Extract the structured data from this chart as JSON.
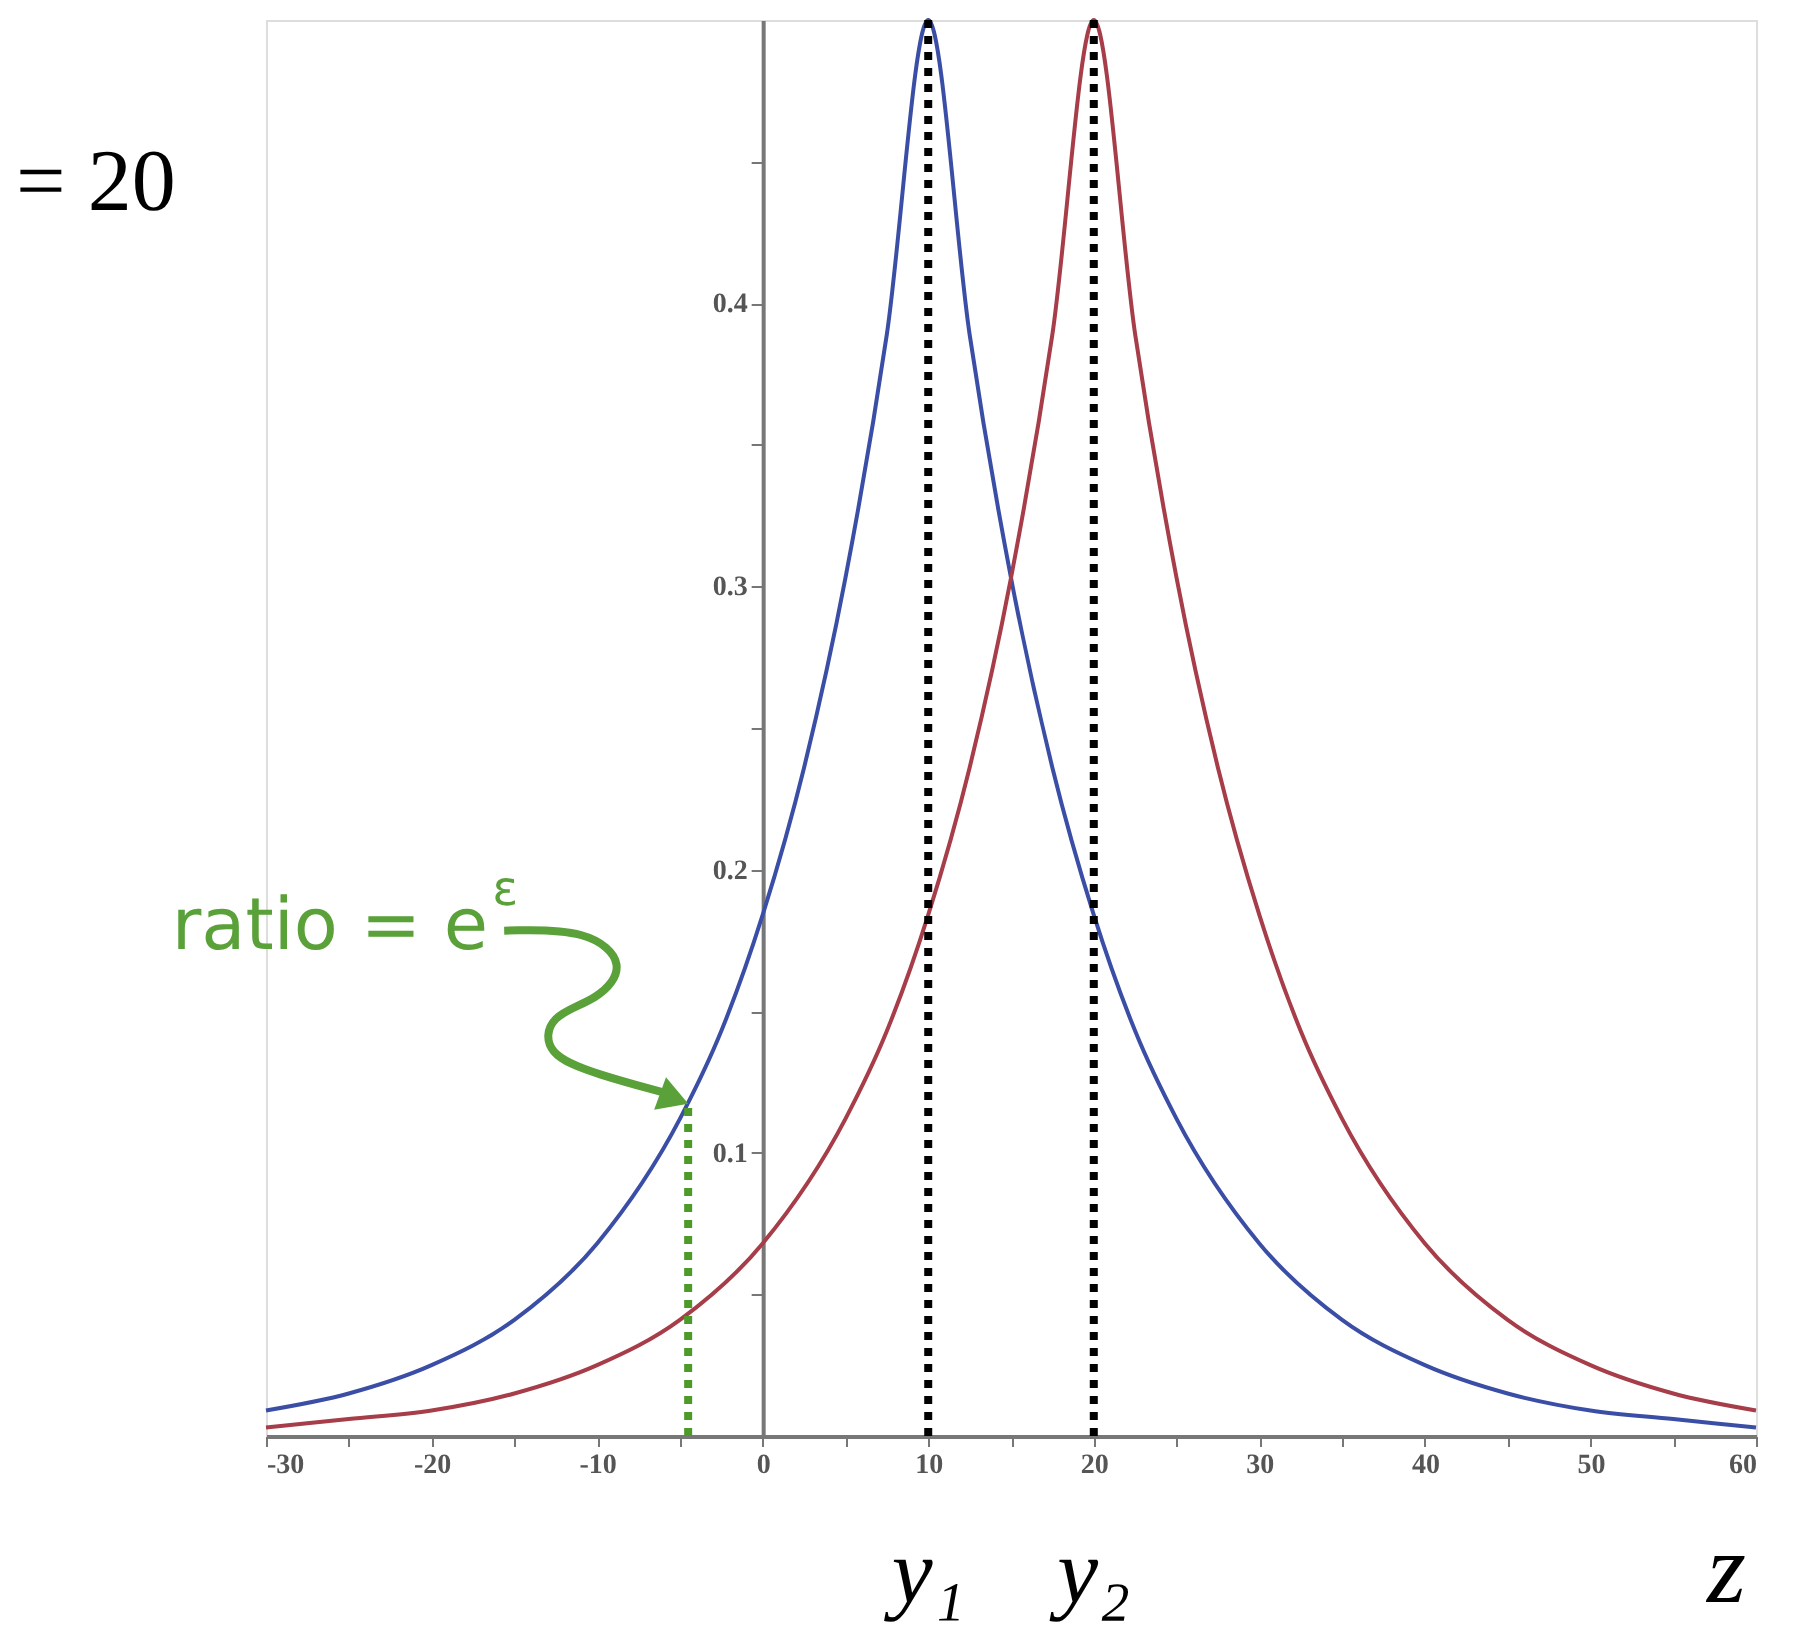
{
  "chart_data": {
    "type": "line",
    "xlabel": "z",
    "xlim": [
      -30,
      60
    ],
    "ylim": [
      0,
      0.5
    ],
    "xticks": [
      -30,
      {
        "value": -25,
        "label": null
      },
      -20,
      {
        "value": -15,
        "label": null
      },
      -10,
      {
        "value": -5,
        "label": null
      },
      0,
      {
        "value": 5,
        "label": null
      },
      10,
      {
        "value": 15,
        "label": null
      },
      20,
      {
        "value": 25,
        "label": null
      },
      30,
      {
        "value": 35,
        "label": null
      },
      40,
      {
        "value": 45,
        "label": null
      },
      50,
      {
        "value": 55,
        "label": null
      },
      60
    ],
    "yticks": [
      {
        "value": 0.05,
        "label": null
      },
      0.1,
      {
        "value": 0.15,
        "label": null
      },
      0.2,
      {
        "value": 0.25,
        "label": null
      },
      0.3,
      {
        "value": 0.35,
        "label": null
      },
      0.4,
      {
        "value": 0.45,
        "label": null
      }
    ],
    "grid": false,
    "marker": "none",
    "series": [
      {
        "color": "#3b4ea6",
        "x": [
          -30,
          -25,
          -20,
          -15,
          -10,
          -5,
          -2.5,
          0,
          2.5,
          5,
          7.5,
          10,
          12.5,
          15,
          17.5,
          20,
          22.5,
          25,
          30,
          35,
          40,
          45,
          50,
          55,
          60
        ],
        "values": [
          0.009,
          0.015,
          0.025,
          0.041,
          0.068,
          0.112,
          0.143,
          0.184,
          0.236,
          0.303,
          0.389,
          0.5,
          0.389,
          0.303,
          0.236,
          0.184,
          0.143,
          0.112,
          0.068,
          0.041,
          0.025,
          0.015,
          0.009,
          0.006,
          0.003
        ]
      },
      {
        "color": "#a63d48",
        "x": [
          -30,
          -25,
          -20,
          -15,
          -10,
          -5,
          0,
          5,
          7.5,
          10,
          12.5,
          15,
          17.5,
          20,
          22.5,
          25,
          27.5,
          30,
          32.5,
          35,
          40,
          45,
          50,
          55,
          60
        ],
        "values": [
          0.003,
          0.006,
          0.009,
          0.015,
          0.025,
          0.041,
          0.068,
          0.112,
          0.143,
          0.184,
          0.236,
          0.303,
          0.389,
          0.5,
          0.389,
          0.303,
          0.236,
          0.184,
          0.143,
          0.112,
          0.068,
          0.041,
          0.025,
          0.015,
          0.009
        ]
      },
      {
        "color": "#4c9a2a",
        "line_style": "dotted",
        "x": [
          -4.5,
          -4.5
        ],
        "values": [
          0,
          0.117
        ]
      }
    ],
    "ref_lines": [
      {
        "axis": "x",
        "value": 10,
        "label": "y₁",
        "color": "#000000",
        "line_style": "dotted"
      },
      {
        "axis": "x",
        "value": 20,
        "label": "y₂",
        "color": "#000000",
        "line_style": "dotted"
      }
    ],
    "annotations": [
      "= 20",
      "ratio = e$^{ε}$"
    ]
  }
}
